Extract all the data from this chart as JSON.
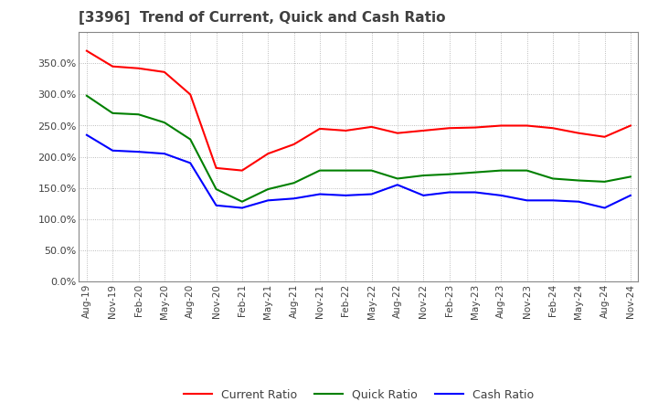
{
  "title": "[3396]  Trend of Current, Quick and Cash Ratio",
  "x_labels": [
    "Aug-19",
    "Nov-19",
    "Feb-20",
    "May-20",
    "Aug-20",
    "Nov-20",
    "Feb-21",
    "May-21",
    "Aug-21",
    "Nov-21",
    "Feb-22",
    "May-22",
    "Aug-22",
    "Nov-22",
    "Feb-23",
    "May-23",
    "Aug-23",
    "Nov-23",
    "Feb-24",
    "May-24",
    "Aug-24",
    "Nov-24"
  ],
  "current_ratio": [
    370,
    345,
    342,
    336,
    300,
    182,
    178,
    205,
    220,
    245,
    242,
    248,
    238,
    242,
    246,
    247,
    250,
    250,
    246,
    238,
    232,
    250
  ],
  "quick_ratio": [
    298,
    270,
    268,
    255,
    228,
    148,
    128,
    148,
    158,
    178,
    178,
    178,
    165,
    170,
    172,
    175,
    178,
    178,
    165,
    162,
    160,
    168
  ],
  "cash_ratio": [
    235,
    210,
    208,
    205,
    190,
    122,
    118,
    130,
    133,
    140,
    138,
    140,
    155,
    138,
    143,
    143,
    138,
    130,
    130,
    128,
    118,
    138
  ],
  "ylim": [
    0,
    400
  ],
  "yticks": [
    0,
    50,
    100,
    150,
    200,
    250,
    300,
    350
  ],
  "current_color": "#ff0000",
  "quick_color": "#008000",
  "cash_color": "#0000ff",
  "bg_color": "#ffffff",
  "plot_bg_color": "#ffffff",
  "grid_color": "#aaaaaa",
  "title_color": "#404040",
  "legend_labels": [
    "Current Ratio",
    "Quick Ratio",
    "Cash Ratio"
  ]
}
